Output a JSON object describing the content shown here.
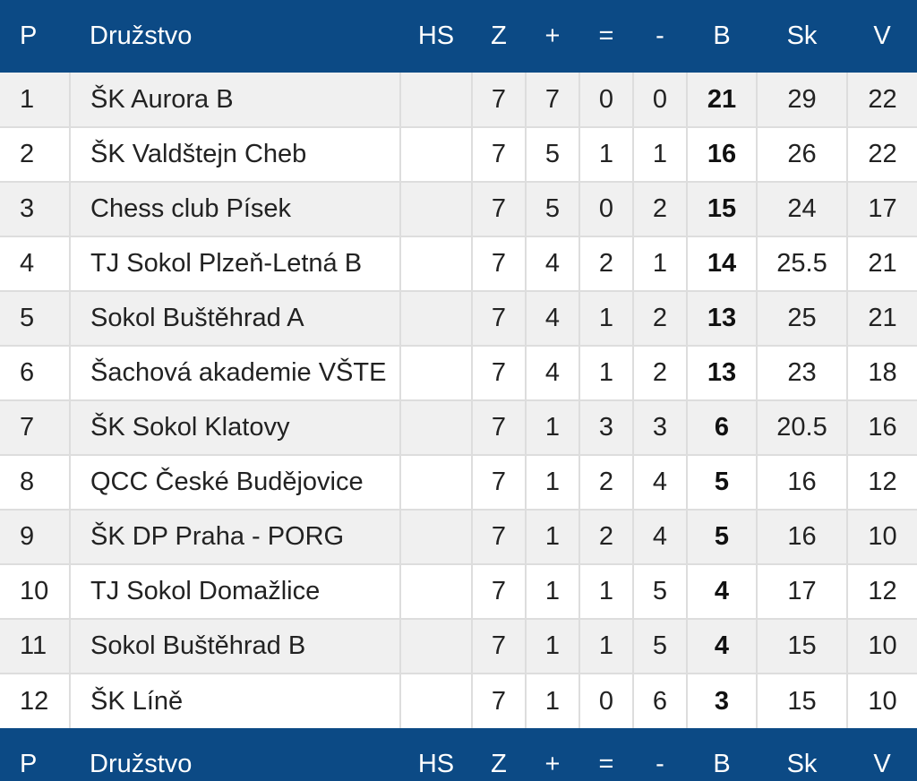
{
  "header": {
    "pos": "P",
    "team": "Družstvo",
    "hs": "HS",
    "z": "Z",
    "plus": "+",
    "eq": "=",
    "minus": "-",
    "b": "B",
    "sk": "Sk",
    "v": "V"
  },
  "rows": [
    {
      "pos": "1",
      "team": "ŠK Aurora B",
      "hs": "",
      "z": "7",
      "plus": "7",
      "eq": "0",
      "minus": "0",
      "b": "21",
      "sk": "29",
      "v": "22"
    },
    {
      "pos": "2",
      "team": "ŠK Valdštejn Cheb",
      "hs": "",
      "z": "7",
      "plus": "5",
      "eq": "1",
      "minus": "1",
      "b": "16",
      "sk": "26",
      "v": "22"
    },
    {
      "pos": "3",
      "team": "Chess club Písek",
      "hs": "",
      "z": "7",
      "plus": "5",
      "eq": "0",
      "minus": "2",
      "b": "15",
      "sk": "24",
      "v": "17"
    },
    {
      "pos": "4",
      "team": "TJ Sokol Plzeň-Letná B",
      "hs": "",
      "z": "7",
      "plus": "4",
      "eq": "2",
      "minus": "1",
      "b": "14",
      "sk": "25.5",
      "v": "21"
    },
    {
      "pos": "5",
      "team": "Sokol Buštěhrad A",
      "hs": "",
      "z": "7",
      "plus": "4",
      "eq": "1",
      "minus": "2",
      "b": "13",
      "sk": "25",
      "v": "21"
    },
    {
      "pos": "6",
      "team": "Šachová akademie VŠTE",
      "hs": "",
      "z": "7",
      "plus": "4",
      "eq": "1",
      "minus": "2",
      "b": "13",
      "sk": "23",
      "v": "18"
    },
    {
      "pos": "7",
      "team": "ŠK Sokol Klatovy",
      "hs": "",
      "z": "7",
      "plus": "1",
      "eq": "3",
      "minus": "3",
      "b": "6",
      "sk": "20.5",
      "v": "16"
    },
    {
      "pos": "8",
      "team": "QCC České Budějovice",
      "hs": "",
      "z": "7",
      "plus": "1",
      "eq": "2",
      "minus": "4",
      "b": "5",
      "sk": "16",
      "v": "12"
    },
    {
      "pos": "9",
      "team": "ŠK DP Praha - PORG",
      "hs": "",
      "z": "7",
      "plus": "1",
      "eq": "2",
      "minus": "4",
      "b": "5",
      "sk": "16",
      "v": "10"
    },
    {
      "pos": "10",
      "team": "TJ Sokol Domažlice",
      "hs": "",
      "z": "7",
      "plus": "1",
      "eq": "1",
      "minus": "5",
      "b": "4",
      "sk": "17",
      "v": "12"
    },
    {
      "pos": "11",
      "team": "Sokol Buštěhrad B",
      "hs": "",
      "z": "7",
      "plus": "1",
      "eq": "1",
      "minus": "5",
      "b": "4",
      "sk": "15",
      "v": "10"
    },
    {
      "pos": "12",
      "team": "ŠK Líně",
      "hs": "",
      "z": "7",
      "plus": "1",
      "eq": "0",
      "minus": "6",
      "b": "3",
      "sk": "15",
      "v": "10"
    }
  ],
  "colors": {
    "header_bg": "#0c4a85",
    "header_text": "#ffffff",
    "row_odd": "#f0f0f0",
    "row_even": "#ffffff",
    "grid": "#dddddd"
  }
}
